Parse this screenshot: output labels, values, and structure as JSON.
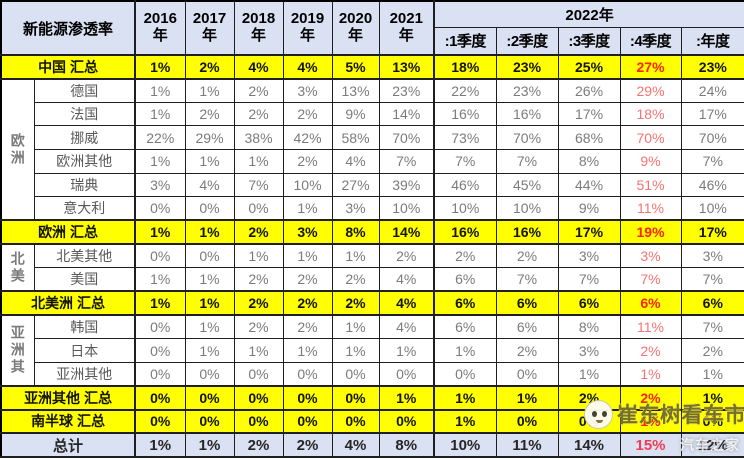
{
  "chart_data": {
    "type": "table",
    "title": "新能源渗透率",
    "year_columns": [
      "2016年",
      "2017年",
      "2018年",
      "2019年",
      "2020年",
      "2021年"
    ],
    "year_2022_label": "2022年",
    "quarter_columns": [
      ":1季度",
      ":2季度",
      ":3季度",
      ":4季度",
      ":年度"
    ],
    "rows": [
      {
        "label": "中国 汇总",
        "type": "summary",
        "values": [
          "1%",
          "2%",
          "4%",
          "4%",
          "5%",
          "13%",
          "18%",
          "23%",
          "25%",
          "27%",
          "23%"
        ]
      },
      {
        "label": "德国",
        "type": "country",
        "group": {
          "label": "欧洲",
          "span": 6
        },
        "values": [
          "1%",
          "1%",
          "2%",
          "3%",
          "13%",
          "23%",
          "22%",
          "23%",
          "26%",
          "29%",
          "24%"
        ]
      },
      {
        "label": "法国",
        "type": "country",
        "values": [
          "1%",
          "2%",
          "2%",
          "2%",
          "9%",
          "14%",
          "16%",
          "16%",
          "17%",
          "18%",
          "17%"
        ]
      },
      {
        "label": "挪威",
        "type": "country",
        "values": [
          "22%",
          "29%",
          "38%",
          "42%",
          "58%",
          "70%",
          "73%",
          "70%",
          "68%",
          "70%",
          "70%"
        ]
      },
      {
        "label": "欧洲其他",
        "type": "country",
        "values": [
          "1%",
          "1%",
          "1%",
          "2%",
          "4%",
          "7%",
          "7%",
          "7%",
          "8%",
          "9%",
          "7%"
        ]
      },
      {
        "label": "瑞典",
        "type": "country",
        "values": [
          "3%",
          "4%",
          "7%",
          "10%",
          "27%",
          "39%",
          "46%",
          "45%",
          "44%",
          "51%",
          "46%"
        ]
      },
      {
        "label": "意大利",
        "type": "country",
        "values": [
          "0%",
          "0%",
          "0%",
          "1%",
          "3%",
          "10%",
          "10%",
          "10%",
          "9%",
          "11%",
          "10%"
        ]
      },
      {
        "label": "欧洲 汇总",
        "type": "summary",
        "values": [
          "1%",
          "1%",
          "2%",
          "3%",
          "8%",
          "14%",
          "16%",
          "16%",
          "17%",
          "19%",
          "17%"
        ]
      },
      {
        "label": "北美其他",
        "type": "country",
        "group": {
          "label": "北美",
          "span": 2
        },
        "values": [
          "0%",
          "0%",
          "1%",
          "1%",
          "1%",
          "2%",
          "2%",
          "2%",
          "3%",
          "3%",
          "3%"
        ]
      },
      {
        "label": "美国",
        "type": "country",
        "values": [
          "1%",
          "1%",
          "2%",
          "2%",
          "2%",
          "4%",
          "6%",
          "7%",
          "7%",
          "7%",
          "7%"
        ]
      },
      {
        "label": "北美洲 汇总",
        "type": "summary",
        "values": [
          "1%",
          "1%",
          "2%",
          "2%",
          "2%",
          "4%",
          "6%",
          "6%",
          "6%",
          "6%",
          "6%"
        ]
      },
      {
        "label": "韩国",
        "type": "country",
        "group": {
          "label": "亚洲其",
          "span": 3
        },
        "values": [
          "0%",
          "1%",
          "2%",
          "2%",
          "1%",
          "4%",
          "6%",
          "6%",
          "8%",
          "11%",
          "7%"
        ]
      },
      {
        "label": "日本",
        "type": "country",
        "values": [
          "0%",
          "1%",
          "1%",
          "1%",
          "1%",
          "1%",
          "1%",
          "2%",
          "3%",
          "2%",
          "2%"
        ]
      },
      {
        "label": "亚洲其他",
        "type": "country",
        "values": [
          "0%",
          "0%",
          "0%",
          "0%",
          "0%",
          "0%",
          "0%",
          "0%",
          "1%",
          "1%",
          "1%"
        ]
      },
      {
        "label": "亚洲其他 汇总",
        "type": "summary",
        "values": [
          "0%",
          "0%",
          "0%",
          "0%",
          "0%",
          "1%",
          "1%",
          "1%",
          "2%",
          "2%",
          "1%"
        ]
      },
      {
        "label": "南半球 汇总",
        "type": "summary",
        "watermarked": true,
        "values": [
          "0%",
          "0%",
          "0%",
          "0%",
          "0%",
          "0%",
          "1%",
          "0%",
          "0%",
          "1%",
          "0%"
        ]
      },
      {
        "label": "总计",
        "type": "total",
        "values": [
          "1%",
          "1%",
          "2%",
          "2%",
          "4%",
          "8%",
          "10%",
          "11%",
          "14%",
          "15%",
          "12%"
        ]
      }
    ]
  },
  "watermark": {
    "brand_text": "崔东树看车市",
    "corner_text": "汽车之家"
  },
  "colors": {
    "header_bg": "#d9e1f2",
    "summary_bg": "#ffff00",
    "total_bg": "#d9e1f2",
    "q4_red_strong": "#ff2200",
    "q4_red_soft": "#f87272",
    "value_gray": "#7b7b7b",
    "border": "#1f1f1f"
  }
}
